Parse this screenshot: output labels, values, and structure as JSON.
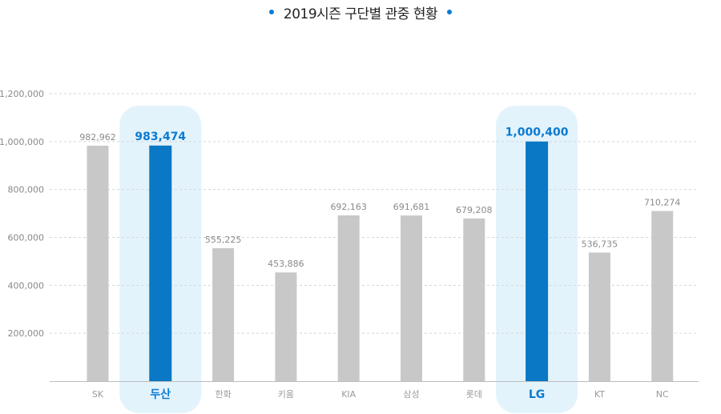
{
  "title": "2019시즌 구단별 관중 현황",
  "colors": {
    "bar": "#c8c8c8",
    "highlight_bar": "#0a78c4",
    "highlight_bg": "#e3f3fc",
    "accent": "#0a7bd1",
    "grid": "#d6d6d6"
  },
  "chart_data": {
    "type": "bar",
    "title": "2019시즌 구단별 관중 현황",
    "categories": [
      "SK",
      "두산",
      "한화",
      "키움",
      "KIA",
      "삼성",
      "롯데",
      "LG",
      "KT",
      "NC"
    ],
    "values": [
      982962,
      983474,
      555225,
      453886,
      692163,
      691681,
      679208,
      1000400,
      536735,
      710274
    ],
    "value_labels": [
      "982,962",
      "983,474",
      "555,225",
      "453,886",
      "692,163",
      "691,681",
      "679,208",
      "1,000,400",
      "536,735",
      "710,274"
    ],
    "highlighted": [
      "두산",
      "LG"
    ],
    "yticks": [
      200000,
      400000,
      600000,
      800000,
      1000000,
      1200000
    ],
    "ytick_labels": [
      "200,000",
      "400,000",
      "600,000",
      "800,000",
      "1,000,000",
      "1,200,000"
    ],
    "ylim": [
      0,
      1200000
    ],
    "xlabel": "",
    "ylabel": "",
    "grid": true
  }
}
